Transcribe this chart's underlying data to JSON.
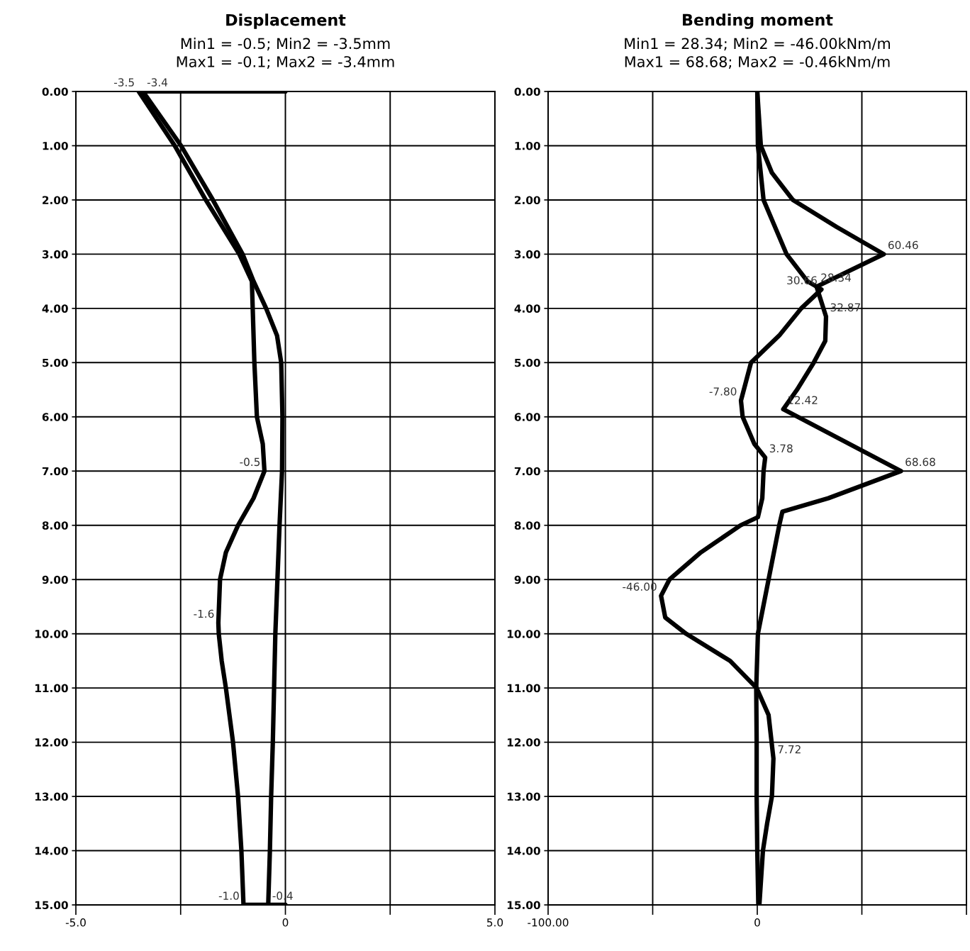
{
  "chart_data": [
    {
      "type": "line",
      "title": "Displacement",
      "subtitle": "Min1 = -0.5; Min2 = -3.5mm\nMax1 = -0.1; Max2 = -3.4mm",
      "xlim": [
        -5,
        5
      ],
      "xticks": [
        {
          "value": -5,
          "label": "-5.0"
        },
        {
          "value": -2.5,
          "label": null
        },
        0,
        {
          "value": 2.5,
          "label": null
        },
        {
          "value": 5,
          "label": "5.0"
        }
      ],
      "ylim": [
        15,
        0
      ],
      "yticks": [
        {
          "value": 0,
          "label": "0.00"
        },
        {
          "value": 1,
          "label": "1.00"
        },
        {
          "value": 2,
          "label": "2.00"
        },
        {
          "value": 3,
          "label": "3.00"
        },
        {
          "value": 4,
          "label": "4.00"
        },
        {
          "value": 5,
          "label": "5.00"
        },
        {
          "value": 6,
          "label": "6.00"
        },
        {
          "value": 7,
          "label": "7.00"
        },
        {
          "value": 8,
          "label": "8.00"
        },
        {
          "value": 9,
          "label": "9.00"
        },
        {
          "value": 10,
          "label": "10.00"
        },
        {
          "value": 11,
          "label": "11.00"
        },
        {
          "value": 12,
          "label": "12.00"
        },
        {
          "value": 13,
          "label": "13.00"
        },
        {
          "value": 14,
          "label": "14.00"
        },
        {
          "value": 15,
          "label": "15.00"
        }
      ],
      "grid": true,
      "marker": "none",
      "line_style": "solid",
      "series": [
        {
          "color": "#000000",
          "x": [
            0,
            -3.4,
            -2.49,
            -1.73,
            -1.02,
            -0.76,
            -0.46,
            -0.2,
            -0.1,
            -0.07,
            -0.08,
            -0.14,
            -0.19,
            -0.24,
            -0.27,
            -0.3,
            -0.34,
            -0.37,
            -0.41
          ],
          "values": [
            0,
            0,
            1,
            2,
            3,
            3.5,
            4,
            4.5,
            5,
            6,
            7,
            8,
            9,
            10,
            11,
            12,
            13,
            14,
            15
          ]
        },
        {
          "color": "#000000",
          "x": [
            -3.5,
            -2.64,
            -1.9,
            -1.1,
            -0.8,
            -0.78,
            -0.74,
            -0.68,
            -0.54,
            -0.5,
            -0.76,
            -1.13,
            -1.42,
            -1.56,
            -1.6,
            -1.59,
            -1.52,
            -1.42,
            -1.25,
            -1.13,
            -1.05,
            -1.0,
            0
          ],
          "values": [
            0,
            1,
            2,
            3,
            3.5,
            4,
            5,
            6,
            6.5,
            7,
            7.5,
            8,
            8.5,
            9,
            9.8,
            10,
            10.5,
            11,
            12,
            13,
            14,
            15,
            15
          ]
        }
      ],
      "annotations": [
        {
          "text": "-3.5",
          "x": -3.5,
          "y": 0
        },
        {
          "text": "-3.4",
          "x": -3.4,
          "y": 0
        },
        {
          "text": "-0.5",
          "x": -0.5,
          "y": 7
        },
        {
          "text": "-1.6",
          "x": -1.6,
          "y": 9.8
        },
        {
          "text": "-1.0",
          "x": -1.0,
          "y": 15
        },
        {
          "text": "-0.4",
          "x": -0.41,
          "y": 15
        }
      ]
    },
    {
      "type": "line",
      "title": "Bending moment",
      "subtitle": "Min1 = 28.34; Min2 = -46.00kNm/m\nMax1 = 68.68; Max2 = -0.46kNm/m",
      "xlim": [
        -100,
        100
      ],
      "xticks": [
        {
          "value": -100,
          "label": "-100.00"
        },
        {
          "value": -50,
          "label": null
        },
        0,
        {
          "value": 50,
          "label": null
        },
        {
          "value": 100,
          "label": null
        }
      ],
      "ylim": [
        15,
        0
      ],
      "yticks": [
        {
          "value": 0,
          "label": "0.00"
        },
        {
          "value": 1,
          "label": "1.00"
        },
        {
          "value": 2,
          "label": "2.00"
        },
        {
          "value": 3,
          "label": "3.00"
        },
        {
          "value": 4,
          "label": "4.00"
        },
        {
          "value": 5,
          "label": "5.00"
        },
        {
          "value": 6,
          "label": "6.00"
        },
        {
          "value": 7,
          "label": "7.00"
        },
        {
          "value": 8,
          "label": "8.00"
        },
        {
          "value": 9,
          "label": "9.00"
        },
        {
          "value": 10,
          "label": "10.00"
        },
        {
          "value": 11,
          "label": "11.00"
        },
        {
          "value": 12,
          "label": "12.00"
        },
        {
          "value": 13,
          "label": "13.00"
        },
        {
          "value": 14,
          "label": "14.00"
        },
        {
          "value": 15,
          "label": "15.00"
        }
      ],
      "grid": true,
      "marker": "none",
      "line_style": "solid",
      "series": [
        {
          "color": "#000000",
          "x": [
            0,
            1.7,
            7,
            17,
            38,
            60.46,
            28.34,
            32.87,
            32.5,
            27,
            19,
            12.42,
            68.68,
            34,
            12,
            10.5,
            5.4,
            0.3,
            -0.5,
            -0.3,
            -0.3,
            0,
            0.5
          ],
          "values": [
            0,
            1,
            1.5,
            2,
            2.5,
            3,
            3.6,
            4.15,
            4.6,
            5,
            5.5,
            5.86,
            7,
            7.5,
            7.75,
            8,
            9,
            10,
            11,
            12,
            13,
            14,
            15
          ]
        },
        {
          "color": "#000000",
          "x": [
            0,
            0.3,
            3,
            14,
            24,
            30.66,
            21,
            10.5,
            -3,
            -7.8,
            -7,
            -1.4,
            3.78,
            3,
            2.4,
            0.3,
            -8,
            -27,
            -42,
            -46.0,
            -44,
            -34,
            -13,
            -0.3,
            5.4,
            7.72,
            7,
            4.7,
            2.7,
            1.0
          ],
          "values": [
            0,
            1,
            2,
            3,
            3.5,
            3.65,
            4,
            4.5,
            5,
            5.7,
            6,
            6.5,
            6.75,
            7,
            7.5,
            7.85,
            8,
            8.5,
            9,
            9.3,
            9.7,
            10,
            10.5,
            11,
            11.5,
            12.3,
            13,
            13.5,
            14,
            15
          ]
        }
      ],
      "annotations": [
        {
          "text": "60.46",
          "x": 60.46,
          "y": 3
        },
        {
          "text": "28.34",
          "x": 28.34,
          "y": 3.6
        },
        {
          "text": "30.66",
          "x": 30.66,
          "y": 3.65
        },
        {
          "text": "32.87",
          "x": 32.87,
          "y": 4.15
        },
        {
          "text": "-7.80",
          "x": -7.8,
          "y": 5.7
        },
        {
          "text": "12.42",
          "x": 12.42,
          "y": 5.86
        },
        {
          "text": "3.78",
          "x": 3.78,
          "y": 6.75
        },
        {
          "text": "68.68",
          "x": 68.68,
          "y": 7
        },
        {
          "text": "-46.00",
          "x": -46.0,
          "y": 9.3
        },
        {
          "text": "7.72",
          "x": 7.72,
          "y": 12.3
        }
      ]
    }
  ]
}
